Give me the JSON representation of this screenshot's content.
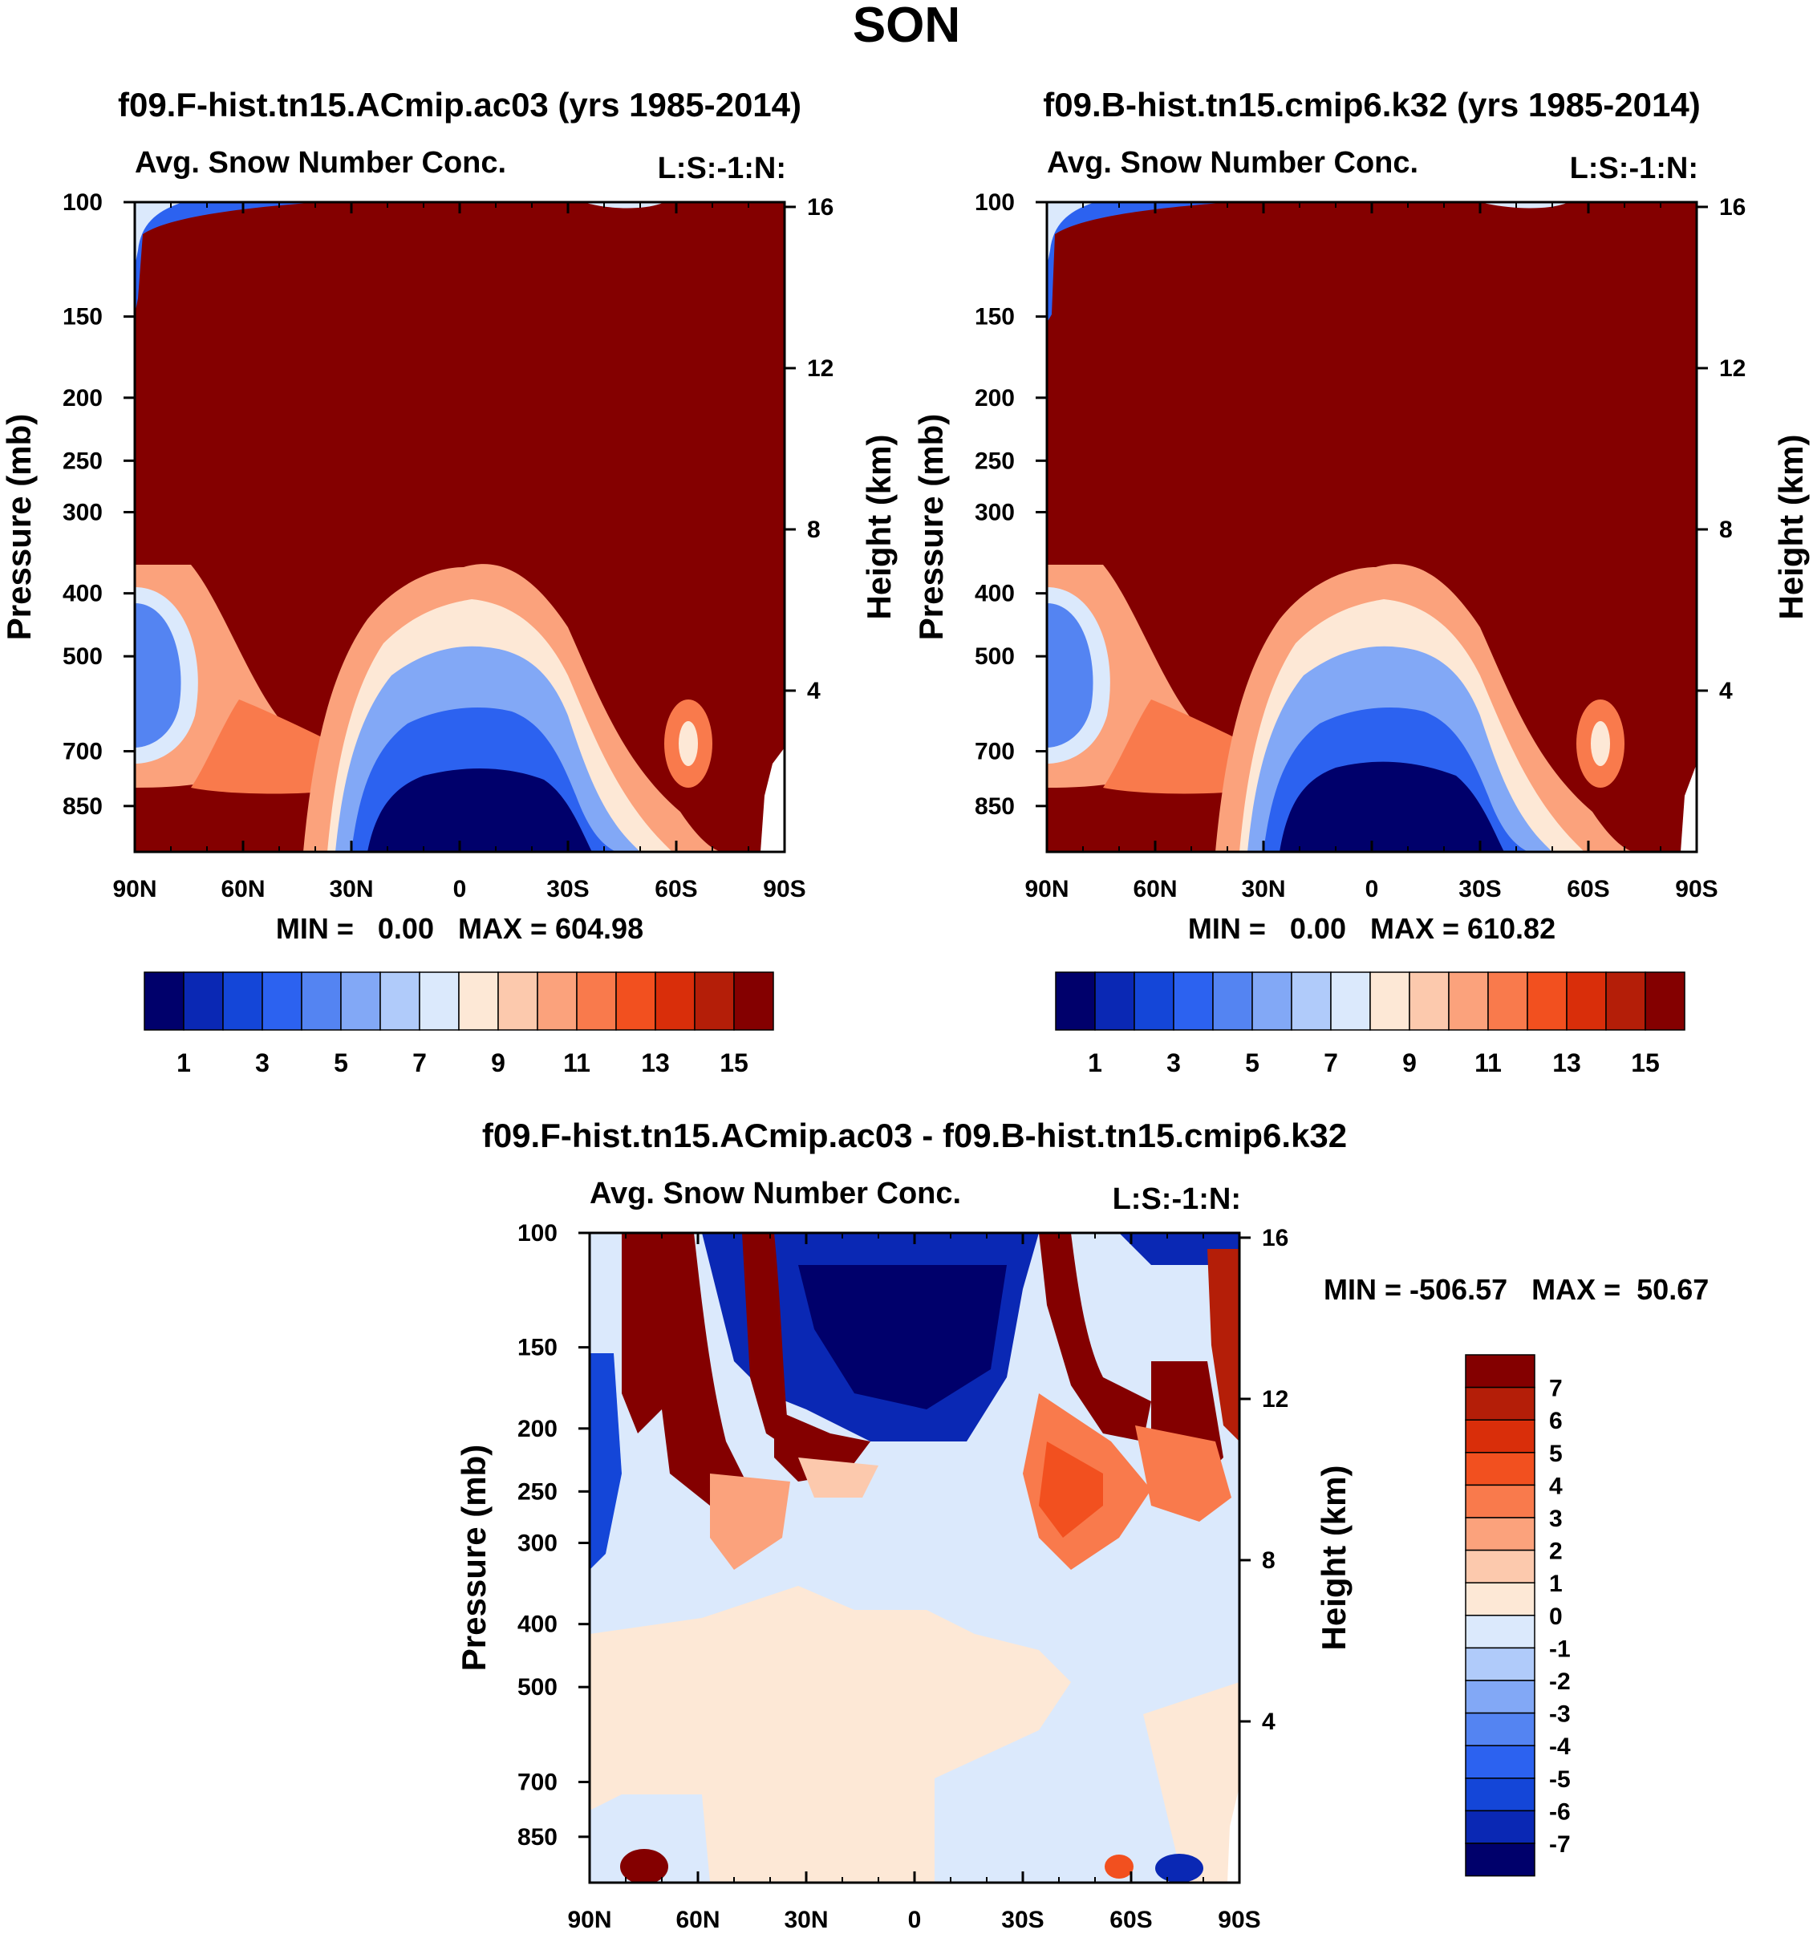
{
  "page_title": "SON",
  "chart_data": [
    {
      "type": "heatmap",
      "title": "f09.F-hist.tn15.ACmip.ac03 (yrs 1985-2014)",
      "subtitle_left": "Avg. Snow Number Conc.",
      "subtitle_right": "L:S:-1:N:",
      "ylabel": "Pressure (mb)",
      "y2label": "Height (km)",
      "x_ticks": [
        "90N",
        "60N",
        "30N",
        "0",
        "30S",
        "60S",
        "90S"
      ],
      "y_ticks": [
        "100",
        "150",
        "200",
        "250",
        "300",
        "400",
        "500",
        "700",
        "850"
      ],
      "y2_ticks": [
        "16",
        "12",
        "8",
        "4"
      ],
      "stats": "MIN =   0.00   MAX = 604.98",
      "colorbar_labels": [
        "1",
        "3",
        "5",
        "7",
        "9",
        "11",
        "13",
        "15"
      ]
    },
    {
      "type": "heatmap",
      "title": "f09.B-hist.tn15.cmip6.k32 (yrs 1985-2014)",
      "subtitle_left": "Avg. Snow Number Conc.",
      "subtitle_right": "L:S:-1:N:",
      "ylabel": "Pressure (mb)",
      "y2label": "Height (km)",
      "x_ticks": [
        "90N",
        "60N",
        "30N",
        "0",
        "30S",
        "60S",
        "90S"
      ],
      "y_ticks": [
        "100",
        "150",
        "200",
        "250",
        "300",
        "400",
        "500",
        "700",
        "850"
      ],
      "y2_ticks": [
        "16",
        "12",
        "8",
        "4"
      ],
      "stats": "MIN =   0.00   MAX = 610.82",
      "colorbar_labels": [
        "1",
        "3",
        "5",
        "7",
        "9",
        "11",
        "13",
        "15"
      ]
    },
    {
      "type": "heatmap",
      "title": "f09.F-hist.tn15.ACmip.ac03 - f09.B-hist.tn15.cmip6.k32",
      "subtitle_left": "Avg. Snow Number Conc.",
      "subtitle_right": "L:S:-1:N:",
      "ylabel": "Pressure (mb)",
      "y2label": "Height (km)",
      "x_ticks": [
        "90N",
        "60N",
        "30N",
        "0",
        "30S",
        "60S",
        "90S"
      ],
      "y_ticks": [
        "100",
        "150",
        "200",
        "250",
        "300",
        "400",
        "500",
        "700",
        "850"
      ],
      "y2_ticks": [
        "16",
        "12",
        "8",
        "4"
      ],
      "stats": "MIN = -506.57   MAX =  50.67",
      "colorbar_labels": [
        "7",
        "6",
        "5",
        "4",
        "3",
        "2",
        "1",
        "0",
        "-1",
        "-2",
        "-3",
        "-4",
        "-5",
        "-6",
        "-7"
      ]
    }
  ],
  "colors": {
    "palette": [
      "#00006b",
      "#0a28b4",
      "#1446d8",
      "#2c62f0",
      "#5484f2",
      "#82a8f6",
      "#b0cbfa",
      "#dbe9fc",
      "#fde8d6",
      "#fcc9ad",
      "#fba27c",
      "#f97a4c",
      "#f2501f",
      "#d92e0a",
      "#b41e08",
      "#840000"
    ],
    "diff_palette": [
      "#840000",
      "#b41e08",
      "#d92e0a",
      "#f2501f",
      "#f97a4c",
      "#fba27c",
      "#fcc9ad",
      "#fde8d6",
      "#dbe9fc",
      "#b0cbfa",
      "#82a8f6",
      "#5484f2",
      "#2c62f0",
      "#1446d8",
      "#0a28b4",
      "#00006b"
    ]
  }
}
